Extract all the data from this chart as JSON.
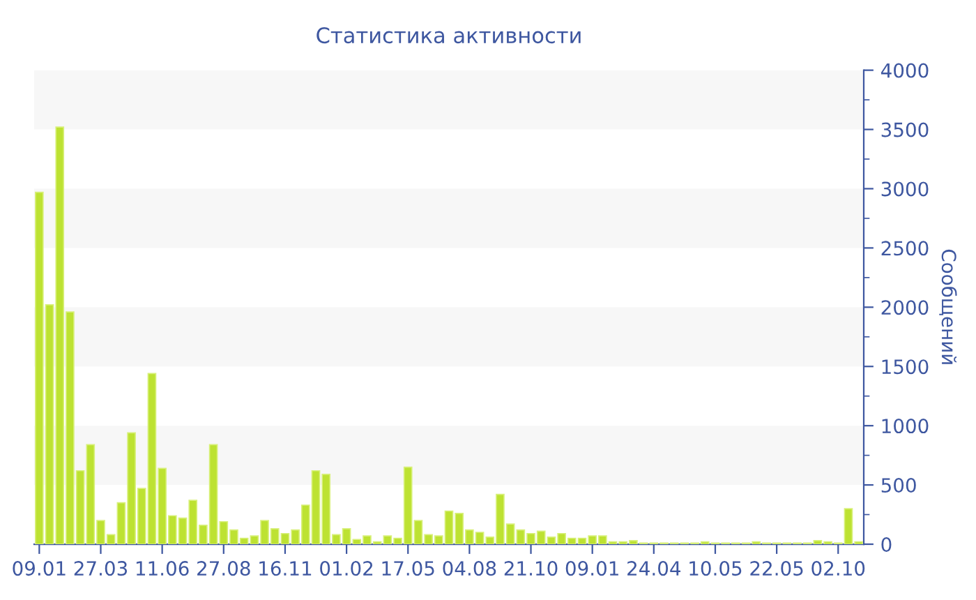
{
  "chart_data": {
    "type": "bar",
    "title": "Статистика активности",
    "ylabel": "Сообщений",
    "categories": [
      "09.01",
      null,
      null,
      null,
      null,
      null,
      "27.03",
      null,
      null,
      null,
      null,
      null,
      "11.06",
      null,
      null,
      null,
      null,
      null,
      "27.08",
      null,
      null,
      null,
      null,
      null,
      "16.11",
      null,
      null,
      null,
      null,
      null,
      "01.02",
      null,
      null,
      null,
      null,
      null,
      "17.05",
      null,
      null,
      null,
      null,
      null,
      "04.08",
      null,
      null,
      null,
      null,
      null,
      "21.10",
      null,
      null,
      null,
      null,
      null,
      "09.01",
      null,
      null,
      null,
      null,
      null,
      "24.04",
      null,
      null,
      null,
      null,
      null,
      "10.05",
      null,
      null,
      null,
      null,
      null,
      "22.05",
      null,
      null,
      null,
      null,
      null,
      "02.10",
      null,
      null
    ],
    "values": [
      2970,
      2020,
      3520,
      1960,
      620,
      840,
      200,
      80,
      350,
      940,
      470,
      1440,
      640,
      240,
      220,
      370,
      160,
      840,
      190,
      120,
      50,
      70,
      200,
      130,
      90,
      120,
      330,
      620,
      590,
      80,
      130,
      40,
      70,
      20,
      70,
      50,
      650,
      200,
      80,
      70,
      280,
      260,
      120,
      100,
      60,
      420,
      170,
      120,
      90,
      110,
      60,
      90,
      50,
      50,
      70,
      70,
      20,
      20,
      30,
      10,
      10,
      10,
      10,
      10,
      10,
      20,
      10,
      10,
      10,
      10,
      20,
      10,
      10,
      10,
      10,
      10,
      30,
      20,
      10,
      300,
      20
    ],
    "color": "#bde232",
    "ylim": [
      0,
      4000
    ],
    "yticks": [
      0,
      {
        "value": 250,
        "label": null
      },
      500,
      {
        "value": 750,
        "label": null
      },
      1000,
      {
        "value": 1250,
        "label": null
      },
      1500,
      {
        "value": 1750,
        "label": null
      },
      2000,
      {
        "value": 2250,
        "label": null
      },
      2500,
      {
        "value": 2750,
        "label": null
      },
      3000,
      {
        "value": 3250,
        "label": null
      },
      3500,
      {
        "value": 3750,
        "label": null
      },
      4000
    ],
    "bands": [
      {
        "axis": "y",
        "from": 500,
        "to": 1000,
        "color": "#f7f7f7"
      },
      {
        "axis": "y",
        "from": 1500,
        "to": 2000,
        "color": "#f7f7f7"
      },
      {
        "axis": "y",
        "from": 2500,
        "to": 3000,
        "color": "#f7f7f7"
      },
      {
        "axis": "y",
        "from": 3500,
        "to": 4000,
        "color": "#f7f7f7"
      }
    ],
    "grid": false
  }
}
